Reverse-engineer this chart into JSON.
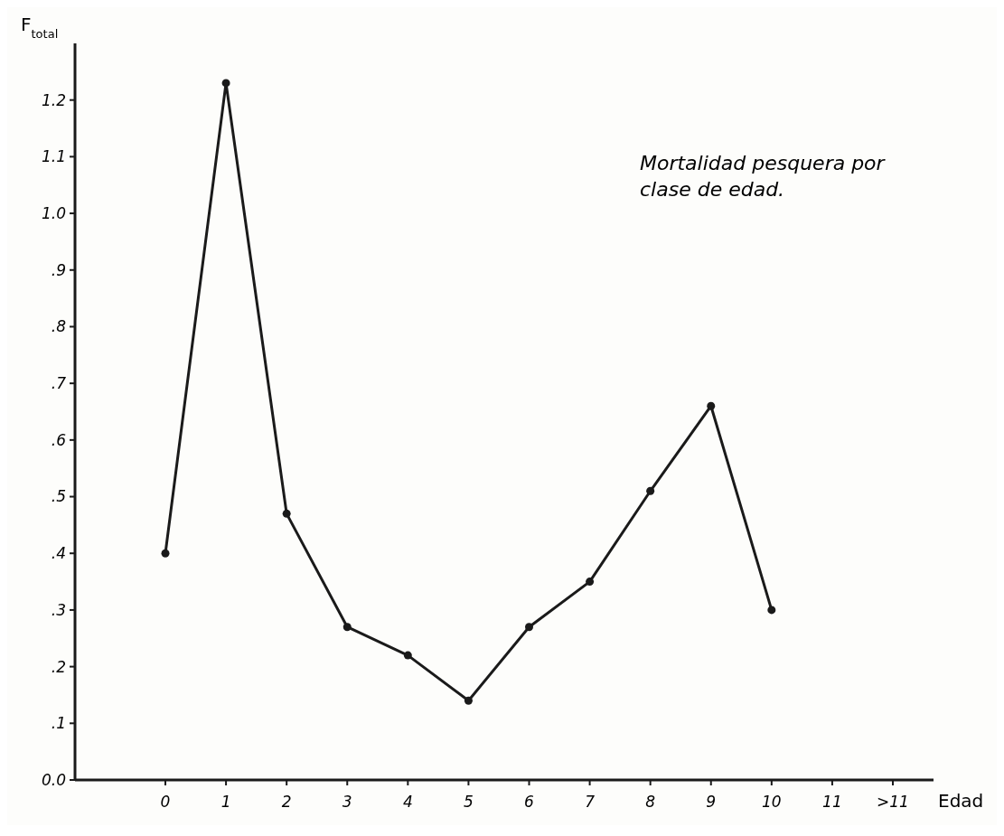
{
  "chart_data": {
    "type": "line",
    "ylabel": "F$_{total}$",
    "xlabel": "Edad",
    "annotations": [
      "Mortalidad pesquera por clase de edad."
    ],
    "categories": [
      "0",
      "1",
      "2",
      "3",
      "4",
      "5",
      "6",
      "7",
      "8",
      "9",
      "10",
      "11",
      ">11"
    ],
    "series": [
      {
        "color": "#1a1a1a",
        "values": [
          0.4,
          1.23,
          0.47,
          0.27,
          0.22,
          0.14,
          0.27,
          0.35,
          0.51,
          0.66,
          0.3,
          null,
          null
        ]
      }
    ],
    "ylim": [
      0,
      1.3
    ],
    "yticks": [
      {
        "value": 0,
        "label": "0.0"
      },
      {
        "value": 0.1,
        "label": ".1"
      },
      {
        "value": 0.2,
        "label": ".2"
      },
      {
        "value": 0.3,
        "label": ".3"
      },
      {
        "value": 0.4,
        "label": ".4"
      },
      {
        "value": 0.5,
        "label": ".5"
      },
      {
        "value": 0.6,
        "label": ".6"
      },
      {
        "value": 0.7,
        "label": ".7"
      },
      {
        "value": 0.8,
        "label": ".8"
      },
      {
        "value": 0.9,
        "label": ".9"
      },
      {
        "value": 1.0,
        "label": "1.0"
      },
      {
        "value": 1.1,
        "label": "1.1"
      },
      {
        "value": 1.2,
        "label": "1.2"
      }
    ],
    "marker": "circle",
    "line_style": "solid",
    "grid": false
  }
}
